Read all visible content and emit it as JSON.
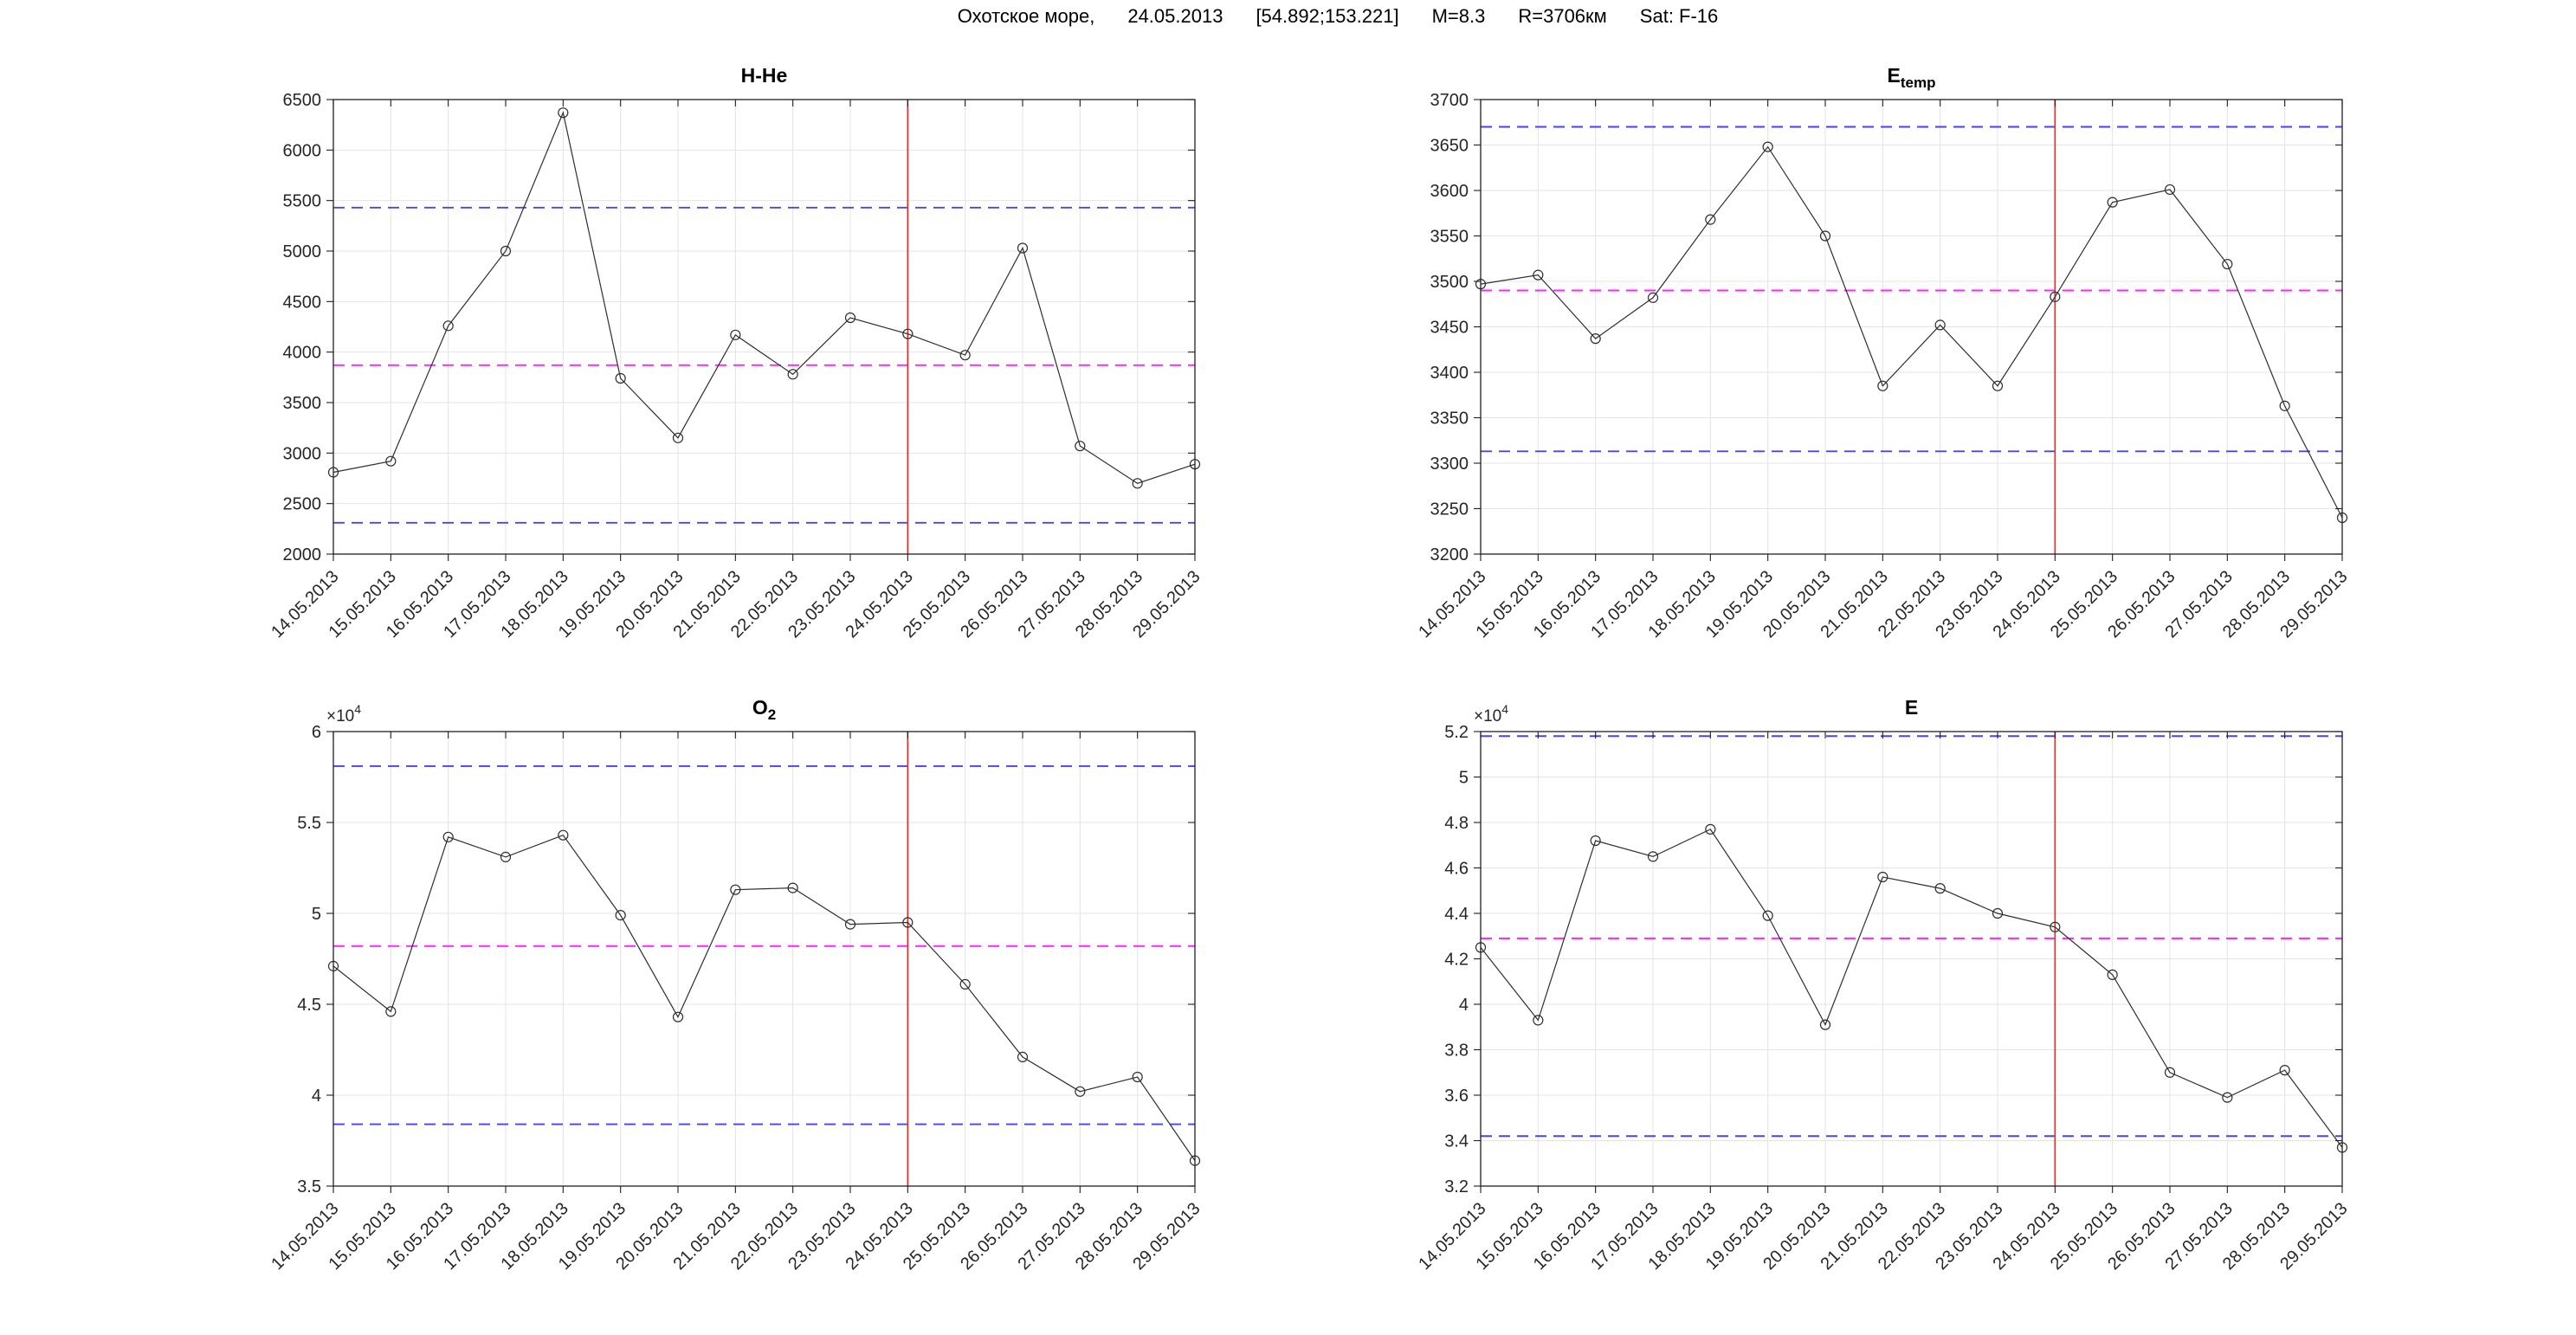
{
  "header": {
    "location": "Охотское море,",
    "date": "24.05.2013",
    "coords": "[54.892;153.221]",
    "magnitude": "M=8.3",
    "radius": "R=3706км",
    "satellite": "Sat: F-16"
  },
  "colors": {
    "series": "#2e2e2e",
    "band": "#4646f0",
    "mean": "#ff22ff",
    "event": "#e3302c",
    "grid": "#e4e4e4",
    "axis": "#1f1f1f"
  },
  "chart_data": [
    {
      "type": "line",
      "title_main": "H-He",
      "title_sub": "",
      "scale_label": "",
      "scale_exp": "",
      "categories": [
        "14.05.2013",
        "15.05.2013",
        "16.05.2013",
        "17.05.2013",
        "18.05.2013",
        "19.05.2013",
        "20.05.2013",
        "21.05.2013",
        "22.05.2013",
        "23.05.2013",
        "24.05.2013",
        "25.05.2013",
        "26.05.2013",
        "27.05.2013",
        "28.05.2013",
        "29.05.2013"
      ],
      "values": [
        2810,
        2920,
        4260,
        5000,
        6370,
        3740,
        3150,
        4170,
        3780,
        4340,
        4180,
        3970,
        5030,
        3070,
        2700,
        2890
      ],
      "ylim": [
        2000,
        6500
      ],
      "ytick_values": [
        2000,
        2500,
        3000,
        3500,
        4000,
        4500,
        5000,
        5500,
        6000,
        6500
      ],
      "ytick_labels": [
        "2000",
        "2500",
        "3000",
        "3500",
        "4000",
        "4500",
        "5000",
        "5500",
        "6000",
        "6500"
      ],
      "upper_band": 5430,
      "mean_line": 3870,
      "lower_band": 2310,
      "event_index": 10,
      "grid": "on",
      "legend": "none"
    },
    {
      "type": "line",
      "title_main": "E",
      "title_sub": "temp",
      "scale_label": "",
      "scale_exp": "",
      "categories": [
        "14.05.2013",
        "15.05.2013",
        "16.05.2013",
        "17.05.2013",
        "18.05.2013",
        "19.05.2013",
        "20.05.2013",
        "21.05.2013",
        "22.05.2013",
        "23.05.2013",
        "24.05.2013",
        "25.05.2013",
        "26.05.2013",
        "27.05.2013",
        "28.05.2013",
        "29.05.2013"
      ],
      "values": [
        3497,
        3507,
        3437,
        3482,
        3568,
        3648,
        3550,
        3385,
        3452,
        3385,
        3483,
        3587,
        3601,
        3519,
        3363,
        3240
      ],
      "ylim": [
        3200,
        3700
      ],
      "ytick_values": [
        3200,
        3250,
        3300,
        3350,
        3400,
        3450,
        3500,
        3550,
        3600,
        3650,
        3700
      ],
      "ytick_labels": [
        "3200",
        "3250",
        "3300",
        "3350",
        "3400",
        "3450",
        "3500",
        "3550",
        "3600",
        "3650",
        "3700"
      ],
      "upper_band": 3670,
      "mean_line": 3490,
      "lower_band": 3313,
      "event_index": 10,
      "grid": "on",
      "legend": "none"
    },
    {
      "type": "line",
      "title_main": "O",
      "title_sub": "2",
      "scale_label": "×10",
      "scale_exp": "4",
      "categories": [
        "14.05.2013",
        "15.05.2013",
        "16.05.2013",
        "17.05.2013",
        "18.05.2013",
        "19.05.2013",
        "20.05.2013",
        "21.05.2013",
        "22.05.2013",
        "23.05.2013",
        "24.05.2013",
        "25.05.2013",
        "26.05.2013",
        "27.05.2013",
        "28.05.2013",
        "29.05.2013"
      ],
      "values": [
        47100,
        44600,
        54200,
        53100,
        54300,
        49900,
        44300,
        51300,
        51400,
        49400,
        49500,
        46100,
        42100,
        40200,
        41000,
        36400
      ],
      "ylim": [
        35000,
        60000
      ],
      "ytick_values": [
        35000,
        40000,
        45000,
        50000,
        55000,
        60000
      ],
      "ytick_labels": [
        "3.5",
        "4",
        "4.5",
        "5",
        "5.5",
        "6"
      ],
      "upper_band": 58100,
      "mean_line": 48200,
      "lower_band": 38400,
      "event_index": 10,
      "grid": "on",
      "legend": "none"
    },
    {
      "type": "line",
      "title_main": "E",
      "title_sub": "",
      "scale_label": "×10",
      "scale_exp": "4",
      "categories": [
        "14.05.2013",
        "15.05.2013",
        "16.05.2013",
        "17.05.2013",
        "18.05.2013",
        "19.05.2013",
        "20.05.2013",
        "21.05.2013",
        "22.05.2013",
        "23.05.2013",
        "24.05.2013",
        "25.05.2013",
        "26.05.2013",
        "27.05.2013",
        "28.05.2013",
        "29.05.2013"
      ],
      "values": [
        42500,
        39300,
        47200,
        46500,
        47700,
        43900,
        39100,
        45600,
        45100,
        44000,
        43400,
        41300,
        37000,
        35900,
        37100,
        33700
      ],
      "ylim": [
        32000,
        52000
      ],
      "ytick_values": [
        32000,
        34000,
        36000,
        38000,
        40000,
        42000,
        44000,
        46000,
        48000,
        50000,
        52000
      ],
      "ytick_labels": [
        "3.2",
        "3.4",
        "3.6",
        "3.8",
        "4",
        "4.2",
        "4.4",
        "4.6",
        "4.8",
        "5",
        "5.2"
      ],
      "upper_band": 51800,
      "mean_line": 42900,
      "lower_band": 34200,
      "event_index": 10,
      "grid": "on",
      "legend": "none"
    }
  ]
}
